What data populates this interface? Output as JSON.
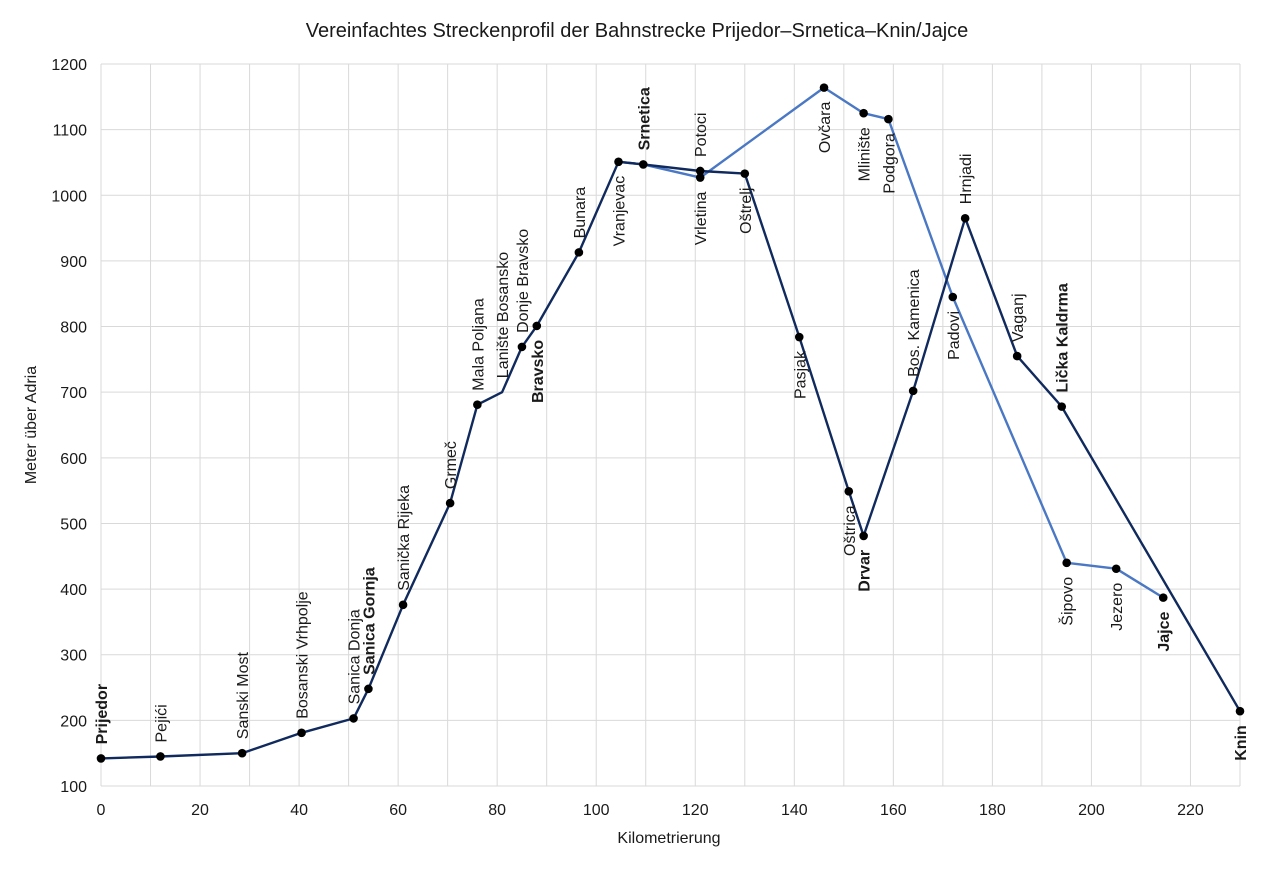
{
  "chart_data": {
    "type": "line",
    "title": "Vereinfachtes Streckenprofil der Bahnstrecke Prijedor–Srnetica–Knin/Jajce",
    "xlabel": "Kilometrierung",
    "ylabel": "Meter über Adria",
    "xlim": [
      0,
      230
    ],
    "ylim": [
      100,
      1200
    ],
    "xticks": [
      0,
      20,
      40,
      60,
      80,
      100,
      120,
      140,
      160,
      180,
      200,
      220
    ],
    "yticks": [
      100,
      200,
      300,
      400,
      500,
      600,
      700,
      800,
      900,
      1000,
      1100,
      1200
    ],
    "grid": true,
    "colors": {
      "main": "#102a5e",
      "branch": "#4a78c4",
      "marker": "#000000"
    },
    "series": [
      {
        "key": "main",
        "points": [
          {
            "x": 0,
            "y": 142
          },
          {
            "x": 12,
            "y": 145
          },
          {
            "x": 28.5,
            "y": 150
          },
          {
            "x": 40.5,
            "y": 181
          },
          {
            "x": 51,
            "y": 203
          },
          {
            "x": 54,
            "y": 248
          },
          {
            "x": 61,
            "y": 376
          },
          {
            "x": 70.5,
            "y": 531
          },
          {
            "x": 76,
            "y": 681
          },
          {
            "x": 81,
            "y": 700
          },
          {
            "x": 85,
            "y": 769
          },
          {
            "x": 88,
            "y": 801
          },
          {
            "x": 96.5,
            "y": 913
          },
          {
            "x": 104.5,
            "y": 1051
          },
          {
            "x": 109.5,
            "y": 1047
          },
          {
            "x": 121,
            "y": 1037
          },
          {
            "x": 130,
            "y": 1033
          },
          {
            "x": 141,
            "y": 784
          },
          {
            "x": 151,
            "y": 549
          },
          {
            "x": 154,
            "y": 481
          },
          {
            "x": 164,
            "y": 702
          },
          {
            "x": 174.5,
            "y": 965
          },
          {
            "x": 185,
            "y": 755
          },
          {
            "x": 194,
            "y": 678
          },
          {
            "x": 230,
            "y": 214
          }
        ]
      },
      {
        "key": "branch",
        "points": [
          {
            "x": 104.5,
            "y": 1051
          },
          {
            "x": 109.5,
            "y": 1047
          },
          {
            "x": 121,
            "y": 1027
          },
          {
            "x": 146,
            "y": 1164
          },
          {
            "x": 154,
            "y": 1125
          },
          {
            "x": 159,
            "y": 1116
          },
          {
            "x": 172,
            "y": 845
          },
          {
            "x": 195,
            "y": 440
          },
          {
            "x": 205,
            "y": 431
          },
          {
            "x": 214.5,
            "y": 387
          }
        ]
      }
    ],
    "markers": [
      {
        "x": 0,
        "y": 142
      },
      {
        "x": 12,
        "y": 145
      },
      {
        "x": 28.5,
        "y": 150
      },
      {
        "x": 40.5,
        "y": 181
      },
      {
        "x": 51,
        "y": 203
      },
      {
        "x": 54,
        "y": 248
      },
      {
        "x": 61,
        "y": 376
      },
      {
        "x": 70.5,
        "y": 531
      },
      {
        "x": 76,
        "y": 681
      },
      {
        "x": 85,
        "y": 769
      },
      {
        "x": 88,
        "y": 801
      },
      {
        "x": 96.5,
        "y": 913
      },
      {
        "x": 104.5,
        "y": 1051
      },
      {
        "x": 109.5,
        "y": 1047
      },
      {
        "x": 121,
        "y": 1037
      },
      {
        "x": 121,
        "y": 1027
      },
      {
        "x": 130,
        "y": 1033
      },
      {
        "x": 141,
        "y": 784
      },
      {
        "x": 151,
        "y": 549
      },
      {
        "x": 154,
        "y": 481
      },
      {
        "x": 164,
        "y": 702
      },
      {
        "x": 174.5,
        "y": 965
      },
      {
        "x": 185,
        "y": 755
      },
      {
        "x": 194,
        "y": 678
      },
      {
        "x": 230,
        "y": 214
      },
      {
        "x": 146,
        "y": 1164
      },
      {
        "x": 154,
        "y": 1125
      },
      {
        "x": 159,
        "y": 1116
      },
      {
        "x": 172,
        "y": 845
      },
      {
        "x": 195,
        "y": 440
      },
      {
        "x": 205,
        "y": 431
      },
      {
        "x": 214.5,
        "y": 387
      }
    ],
    "stations": [
      {
        "name": "Prijedor",
        "x": 0,
        "y": 142,
        "bold": true,
        "pos": "above"
      },
      {
        "name": "Pejići",
        "x": 12,
        "y": 145,
        "bold": false,
        "pos": "above"
      },
      {
        "name": "Sanski Most",
        "x": 28.5,
        "y": 150,
        "bold": false,
        "pos": "above"
      },
      {
        "name": "Bosanski Vrhpolje",
        "x": 40.5,
        "y": 181,
        "bold": false,
        "pos": "above"
      },
      {
        "name": "Sanica Donja",
        "x": 51,
        "y": 203,
        "bold": false,
        "pos": "above"
      },
      {
        "name": "Sanica Gornja",
        "x": 54,
        "y": 248,
        "bold": true,
        "pos": "above"
      },
      {
        "name": "Sanička Rijeka",
        "x": 61,
        "y": 376,
        "bold": false,
        "pos": "above"
      },
      {
        "name": "Grmeč",
        "x": 70.5,
        "y": 531,
        "bold": false,
        "pos": "above"
      },
      {
        "name": "Mala Poljana",
        "x": 76,
        "y": 681,
        "bold": false,
        "pos": "above"
      },
      {
        "name": "Lanište Bosansko",
        "x": 81,
        "y": 700,
        "bold": false,
        "pos": "above"
      },
      {
        "name": "Donje Bravsko",
        "x": 85,
        "y": 769,
        "bold": false,
        "pos": "above"
      },
      {
        "name": "Bravsko",
        "x": 88,
        "y": 801,
        "bold": true,
        "pos": "below"
      },
      {
        "name": "Bunara",
        "x": 96.5,
        "y": 913,
        "bold": false,
        "pos": "above"
      },
      {
        "name": "Vranjevac",
        "x": 104.5,
        "y": 1051,
        "bold": false,
        "pos": "below"
      },
      {
        "name": "Srnetica",
        "x": 109.5,
        "y": 1047,
        "bold": true,
        "pos": "above"
      },
      {
        "name": "Potoci",
        "x": 121,
        "y": 1037,
        "bold": false,
        "pos": "above"
      },
      {
        "name": "Vrletina",
        "x": 121,
        "y": 1027,
        "bold": false,
        "pos": "below"
      },
      {
        "name": "Oštrelj",
        "x": 130,
        "y": 1033,
        "bold": false,
        "pos": "below"
      },
      {
        "name": "Pasjak",
        "x": 141,
        "y": 784,
        "bold": false,
        "pos": "below"
      },
      {
        "name": "Oštrica",
        "x": 151,
        "y": 549,
        "bold": false,
        "pos": "below"
      },
      {
        "name": "Drvar",
        "x": 154,
        "y": 481,
        "bold": true,
        "pos": "below"
      },
      {
        "name": "Bos. Kamenica",
        "x": 164,
        "y": 702,
        "bold": false,
        "pos": "above"
      },
      {
        "name": "Hrnjadi",
        "x": 174.5,
        "y": 965,
        "bold": false,
        "pos": "above"
      },
      {
        "name": "Vaganj",
        "x": 185,
        "y": 755,
        "bold": false,
        "pos": "above"
      },
      {
        "name": "Lička Kaldrma",
        "x": 194,
        "y": 678,
        "bold": true,
        "pos": "above"
      },
      {
        "name": "Knin",
        "x": 230,
        "y": 214,
        "bold": true,
        "pos": "below"
      },
      {
        "name": "Ovčara",
        "x": 146,
        "y": 1164,
        "bold": false,
        "pos": "below"
      },
      {
        "name": "Mlinište",
        "x": 154,
        "y": 1125,
        "bold": false,
        "pos": "below"
      },
      {
        "name": "Podgora",
        "x": 159,
        "y": 1116,
        "bold": false,
        "pos": "below"
      },
      {
        "name": "Padovi",
        "x": 172,
        "y": 845,
        "bold": false,
        "pos": "below"
      },
      {
        "name": "Šipovo",
        "x": 195,
        "y": 440,
        "bold": false,
        "pos": "below"
      },
      {
        "name": "Jezero",
        "x": 205,
        "y": 431,
        "bold": false,
        "pos": "below"
      },
      {
        "name": "Jajce",
        "x": 214.5,
        "y": 387,
        "bold": true,
        "pos": "below"
      }
    ]
  }
}
